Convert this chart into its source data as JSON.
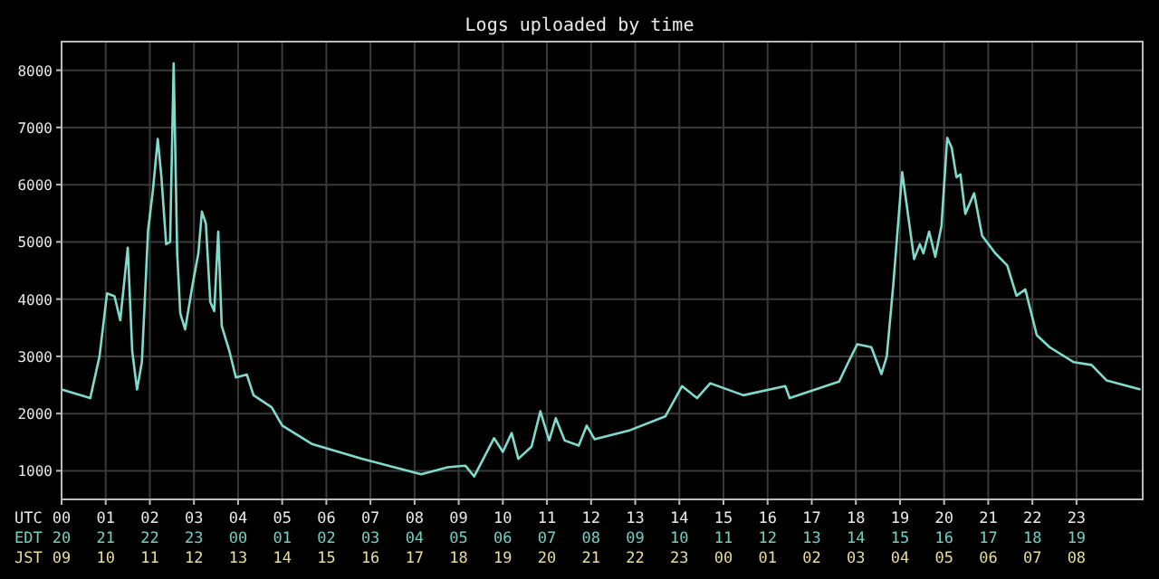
{
  "chart_data": {
    "type": "line",
    "title": "Logs uploaded by time",
    "xlabel": "UTC",
    "annotations": [
      "EDT 20 21 22 23 00 01 02 03 04 05 06 07 08 09 10 11 12 13 14 15 16 17 18 19",
      "JST 09 10 11 12 13 14 15 16 17 18 19 20 21 22 23 00 01 02 03 04 05 06 07 08"
    ],
    "xlim": [
      0,
      24.5
    ],
    "ylim": [
      500,
      8500
    ],
    "yticks": [
      1000,
      2000,
      3000,
      4000,
      5000,
      6000,
      7000,
      8000
    ],
    "grid": true,
    "marker": "none",
    "line_style": "solid",
    "xticks": [
      {
        "value": 0,
        "label": "00"
      },
      {
        "value": 1,
        "label": "01"
      },
      {
        "value": 2,
        "label": "02"
      },
      {
        "value": 3,
        "label": "03"
      },
      {
        "value": 4,
        "label": "04"
      },
      {
        "value": 5,
        "label": "05"
      },
      {
        "value": 6,
        "label": "06"
      },
      {
        "value": 7,
        "label": "07"
      },
      {
        "value": 8,
        "label": "08"
      },
      {
        "value": 9,
        "label": "09"
      },
      {
        "value": 10,
        "label": "10"
      },
      {
        "value": 11,
        "label": "11"
      },
      {
        "value": 12,
        "label": "12"
      },
      {
        "value": 13,
        "label": "13"
      },
      {
        "value": 14,
        "label": "14"
      },
      {
        "value": 15,
        "label": "15"
      },
      {
        "value": 16,
        "label": "16"
      },
      {
        "value": 17,
        "label": "17"
      },
      {
        "value": 18,
        "label": "18"
      },
      {
        "value": 19,
        "label": "19"
      },
      {
        "value": 20,
        "label": "20"
      },
      {
        "value": 21,
        "label": "21"
      },
      {
        "value": 22,
        "label": "22"
      },
      {
        "value": 23,
        "label": "23"
      }
    ],
    "series": [
      {
        "color": "#7fdccc",
        "x": [
          0,
          0.65,
          0.86,
          1.03,
          1.2,
          1.33,
          1.5,
          1.6,
          1.71,
          1.82,
          1.96,
          2.07,
          2.18,
          2.26,
          2.37,
          2.46,
          2.54,
          2.62,
          2.69,
          2.8,
          2.97,
          3.1,
          3.18,
          3.27,
          3.37,
          3.46,
          3.55,
          3.63,
          3.8,
          3.95,
          4.2,
          4.35,
          4.76,
          5.0,
          5.67,
          6.8,
          8.15,
          8.75,
          9.15,
          9.35,
          9.8,
          10.0,
          10.2,
          10.35,
          10.65,
          10.85,
          11.05,
          11.2,
          11.4,
          11.72,
          11.9,
          12.08,
          12.85,
          13.68,
          14.06,
          14.4,
          14.7,
          15.45,
          16.4,
          16.5,
          17.62,
          17.83,
          18.03,
          18.35,
          18.58,
          18.7,
          18.85,
          19.05,
          19.19,
          19.32,
          19.45,
          19.53,
          19.66,
          19.8,
          19.94,
          20.07,
          20.17,
          20.28,
          20.37,
          20.48,
          20.68,
          20.86,
          21.16,
          21.43,
          21.64,
          21.84,
          22.1,
          22.39,
          22.93,
          23.34,
          23.68,
          24.45
        ],
        "values": [
          2420,
          2270,
          3000,
          4100,
          4050,
          3630,
          4900,
          3100,
          2420,
          2900,
          5200,
          5900,
          6800,
          6160,
          4960,
          5000,
          8120,
          4800,
          3750,
          3470,
          4260,
          4800,
          5530,
          5320,
          3950,
          3790,
          5180,
          3530,
          3100,
          2630,
          2680,
          2320,
          2110,
          1790,
          1470,
          1210,
          940,
          1060,
          1090,
          900,
          1570,
          1330,
          1660,
          1210,
          1420,
          2040,
          1530,
          1920,
          1530,
          1440,
          1790,
          1550,
          1700,
          1950,
          2480,
          2270,
          2530,
          2320,
          2480,
          2270,
          2560,
          2900,
          3210,
          3160,
          2690,
          3000,
          4270,
          6220,
          5430,
          4700,
          4960,
          4800,
          5180,
          4740,
          5280,
          6820,
          6650,
          6130,
          6180,
          5490,
          5850,
          5110,
          4800,
          4590,
          4060,
          4170,
          3370,
          3160,
          2900,
          2850,
          2580,
          2420
        ]
      }
    ]
  }
}
